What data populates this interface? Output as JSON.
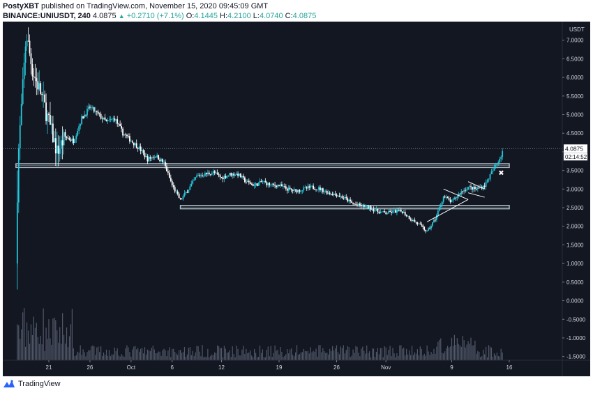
{
  "header": {
    "author": "PostyXBT",
    "published_text": "published on TradingView.com, November 15, 2020 09:45:09 GMT",
    "symbol": "BINANCE:UNIUSDT, 240",
    "last_price": "4.0875",
    "change_arrow": "▲",
    "change": "+0.2710 (+7.1%)",
    "open_label": "O:",
    "open_value": "4.1445",
    "high_label": "H:",
    "high_value": "4.2100",
    "low_label": "L:",
    "low_value": "4.0740",
    "close_label": "C:",
    "close_value": "4.0875"
  },
  "footer": {
    "brand": "TradingView"
  },
  "colors": {
    "background": "#131722",
    "bull": "#26c6da",
    "bear": "#ffffff",
    "zone": "#b0bec5",
    "volume": "#5d6475",
    "price_line": "#9598a1"
  },
  "chart_data": {
    "type": "candlestick",
    "title": "",
    "currency_label": "USDT",
    "ylim": [
      -1.6,
      7.5
    ],
    "y_ticks": [
      "7.0000",
      "6.5000",
      "6.0000",
      "5.5000",
      "5.0000",
      "4.5000",
      "4.0000",
      "3.5000",
      "3.0000",
      "2.5000",
      "2.0000",
      "1.5000",
      "1.0000",
      "0.5000",
      "0.0000",
      "-0.5000",
      "-1.0000",
      "-1.5000"
    ],
    "x_ticks": [
      {
        "label": "21",
        "date": "2020-09-21"
      },
      {
        "label": "26",
        "date": "2020-09-26"
      },
      {
        "label": "Oct",
        "date": "2020-10-01"
      },
      {
        "label": "6",
        "date": "2020-10-06"
      },
      {
        "label": "12",
        "date": "2020-10-12"
      },
      {
        "label": "19",
        "date": "2020-10-19"
      },
      {
        "label": "26",
        "date": "2020-10-26"
      },
      {
        "label": "Nov",
        "date": "2020-11-01"
      },
      {
        "label": "9",
        "date": "2020-11-09"
      },
      {
        "label": "16",
        "date": "2020-11-16"
      }
    ],
    "last_price_label": "4.0875",
    "countdown_label": "02:14:52",
    "price_path": [
      [
        "2020-09-17",
        1.0
      ],
      [
        "2020-09-17",
        3.8
      ],
      [
        "2020-09-18",
        6.3
      ],
      [
        "2020-09-18",
        7.2
      ],
      [
        "2020-09-19",
        6.2
      ],
      [
        "2020-09-20",
        5.6
      ],
      [
        "2020-09-21",
        4.8
      ],
      [
        "2020-09-22",
        4.0
      ],
      [
        "2020-09-23",
        4.4
      ],
      [
        "2020-09-24",
        4.3
      ],
      [
        "2020-09-25",
        4.9
      ],
      [
        "2020-09-26",
        5.2
      ],
      [
        "2020-09-27",
        5.0
      ],
      [
        "2020-09-28",
        4.8
      ],
      [
        "2020-09-29",
        4.9
      ],
      [
        "2020-09-30",
        4.5
      ],
      [
        "2020-10-01",
        4.3
      ],
      [
        "2020-10-02",
        4.1
      ],
      [
        "2020-10-03",
        3.8
      ],
      [
        "2020-10-04",
        3.9
      ],
      [
        "2020-10-05",
        3.7
      ],
      [
        "2020-10-06",
        3.1
      ],
      [
        "2020-10-07",
        2.7
      ],
      [
        "2020-10-08",
        3.0
      ],
      [
        "2020-10-09",
        3.35
      ],
      [
        "2020-10-10",
        3.4
      ],
      [
        "2020-10-11",
        3.45
      ],
      [
        "2020-10-12",
        3.3
      ],
      [
        "2020-10-13",
        3.4
      ],
      [
        "2020-10-14",
        3.4
      ],
      [
        "2020-10-15",
        3.2
      ],
      [
        "2020-10-16",
        3.1
      ],
      [
        "2020-10-17",
        3.2
      ],
      [
        "2020-10-18",
        3.1
      ],
      [
        "2020-10-19",
        3.1
      ],
      [
        "2020-10-20",
        3.0
      ],
      [
        "2020-10-21",
        2.95
      ],
      [
        "2020-10-22",
        3.0
      ],
      [
        "2020-10-23",
        3.05
      ],
      [
        "2020-10-24",
        3.0
      ],
      [
        "2020-10-25",
        2.9
      ],
      [
        "2020-10-26",
        2.85
      ],
      [
        "2020-10-27",
        2.75
      ],
      [
        "2020-10-28",
        2.6
      ],
      [
        "2020-10-29",
        2.55
      ],
      [
        "2020-10-30",
        2.5
      ],
      [
        "2020-10-31",
        2.4
      ],
      [
        "2020-11-01",
        2.35
      ],
      [
        "2020-11-02",
        2.4
      ],
      [
        "2020-11-03",
        2.4
      ],
      [
        "2020-11-04",
        2.2
      ],
      [
        "2020-11-05",
        2.05
      ],
      [
        "2020-11-06",
        1.85
      ],
      [
        "2020-11-07",
        2.2
      ],
      [
        "2020-11-08",
        2.8
      ],
      [
        "2020-11-09",
        2.65
      ],
      [
        "2020-11-10",
        2.9
      ],
      [
        "2020-11-11",
        3.05
      ],
      [
        "2020-11-12",
        3.0
      ],
      [
        "2020-11-13",
        3.1
      ],
      [
        "2020-11-14",
        3.5
      ],
      [
        "2020-11-15",
        3.9
      ],
      [
        "2020-11-15",
        4.0875
      ]
    ],
    "zones": [
      {
        "y0": 3.58,
        "y1": 3.68,
        "from": "2020-09-17",
        "to": "2020-11-16"
      },
      {
        "y0": 2.47,
        "y1": 2.56,
        "from": "2020-10-07",
        "to": "2020-11-16"
      }
    ],
    "trendlines": [
      [
        [
          "2020-11-06",
          2.12
        ],
        [
          "2020-11-11",
          2.72
        ]
      ],
      [
        [
          "2020-11-08",
          3.0
        ],
        [
          "2020-11-11",
          2.72
        ]
      ],
      [
        [
          "2020-11-11",
          3.2
        ],
        [
          "2020-11-13",
          3.0
        ]
      ],
      [
        [
          "2020-11-11",
          2.9
        ],
        [
          "2020-11-13",
          2.78
        ]
      ]
    ],
    "marker": {
      "date": "2020-11-15",
      "value": 3.45,
      "symbol": "✖"
    },
    "volume_scale_max": 1.0,
    "volume_baseline": -1.6
  }
}
